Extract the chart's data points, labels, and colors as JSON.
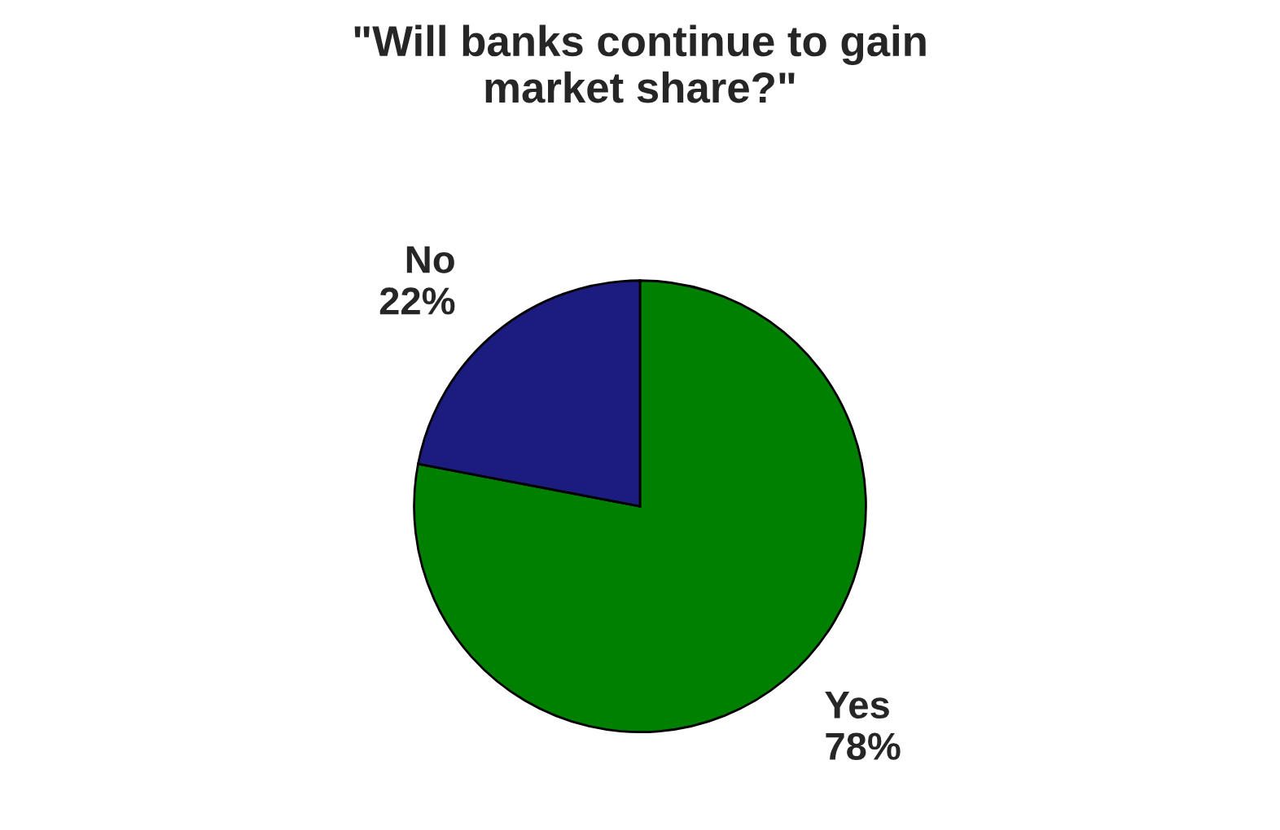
{
  "chart_data": {
    "type": "pie",
    "title": "\"Will banks continue to gain\nmarket share?\"",
    "categories": [
      "Yes",
      "No"
    ],
    "values": [
      78,
      22
    ],
    "value_labels": [
      "78%",
      "22%"
    ],
    "colors": [
      "#008000",
      "#1c1c80"
    ]
  }
}
